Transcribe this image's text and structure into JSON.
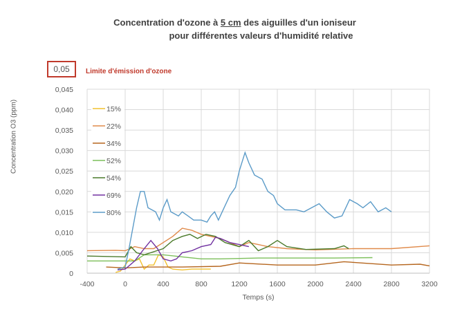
{
  "chart_data": {
    "type": "line",
    "title_line1_pre": "Concentration d'ozone à ",
    "title_line1_u": "5 cm",
    "title_line1_post": " des aiguilles d'un ioniseur",
    "title_line2": "pour différentes valeurs d'humidité relative",
    "xlabel": "Temps (s)",
    "ylabel": "Concentration O3 (ppm)",
    "xlim": [
      -400,
      3200
    ],
    "ylim": [
      0,
      0.045
    ],
    "xticks": [
      "-400",
      "0",
      "400",
      "800",
      "1200",
      "1600",
      "2000",
      "2400",
      "2800",
      "3200"
    ],
    "yticks": [
      "0",
      "0,005",
      "0,010",
      "0,015",
      "0,020",
      "0,025",
      "0,030",
      "0,035",
      "0,040",
      "0,045"
    ],
    "grid": true,
    "legend_placement": "top-left inside",
    "annotation": {
      "value": "0,05",
      "label": "Limite d'émission d'ozone",
      "color": "#c0392b"
    },
    "series": [
      {
        "name": "15%",
        "color": "#f2c12e",
        "points": [
          [
            -100,
            0.0002
          ],
          [
            -50,
            0.0005
          ],
          [
            0,
            0.002
          ],
          [
            50,
            0.0035
          ],
          [
            100,
            0.003
          ],
          [
            150,
            0.0035
          ],
          [
            200,
            0.001
          ],
          [
            250,
            0.002
          ],
          [
            300,
            0.002
          ],
          [
            350,
            0.0045
          ],
          [
            400,
            0.004
          ],
          [
            450,
            0.0015
          ],
          [
            500,
            0.001
          ],
          [
            600,
            0.0008
          ],
          [
            700,
            0.001
          ],
          [
            900,
            0.001
          ]
        ]
      },
      {
        "name": "22%",
        "color": "#e08a4a",
        "points": [
          [
            -400,
            0.0055
          ],
          [
            -100,
            0.0056
          ],
          [
            0,
            0.0055
          ],
          [
            100,
            0.0065
          ],
          [
            200,
            0.006
          ],
          [
            300,
            0.006
          ],
          [
            400,
            0.0075
          ],
          [
            500,
            0.009
          ],
          [
            600,
            0.011
          ],
          [
            700,
            0.0105
          ],
          [
            800,
            0.0095
          ],
          [
            900,
            0.009
          ],
          [
            1000,
            0.0085
          ],
          [
            1100,
            0.0075
          ],
          [
            1200,
            0.0065
          ],
          [
            1300,
            0.0075
          ],
          [
            1400,
            0.007
          ],
          [
            1500,
            0.0065
          ],
          [
            1700,
            0.006
          ],
          [
            2000,
            0.0057
          ],
          [
            2400,
            0.006
          ],
          [
            2800,
            0.006
          ],
          [
            3200,
            0.0067
          ]
        ]
      },
      {
        "name": "34%",
        "color": "#b5651d",
        "points": [
          [
            -200,
            0.0015
          ],
          [
            0,
            0.0013
          ],
          [
            200,
            0.0015
          ],
          [
            600,
            0.0015
          ],
          [
            1000,
            0.0017
          ],
          [
            1200,
            0.0025
          ],
          [
            1600,
            0.002
          ],
          [
            2000,
            0.002
          ],
          [
            2300,
            0.0028
          ],
          [
            2800,
            0.002
          ],
          [
            3100,
            0.0022
          ],
          [
            3200,
            0.0018
          ]
        ]
      },
      {
        "name": "52%",
        "color": "#7cbf5a",
        "points": [
          [
            -400,
            0.003
          ],
          [
            -100,
            0.003
          ],
          [
            0,
            0.003
          ],
          [
            100,
            0.003
          ],
          [
            200,
            0.0045
          ],
          [
            400,
            0.0045
          ],
          [
            600,
            0.004
          ],
          [
            800,
            0.0035
          ],
          [
            1000,
            0.0035
          ],
          [
            1400,
            0.0037
          ],
          [
            1800,
            0.0037
          ],
          [
            2200,
            0.0037
          ],
          [
            2600,
            0.0038
          ]
        ]
      },
      {
        "name": "54%",
        "color": "#4a7a2a",
        "points": [
          [
            -400,
            0.0042
          ],
          [
            0,
            0.004
          ],
          [
            60,
            0.0065
          ],
          [
            120,
            0.005
          ],
          [
            200,
            0.0045
          ],
          [
            400,
            0.006
          ],
          [
            500,
            0.008
          ],
          [
            600,
            0.009
          ],
          [
            680,
            0.0095
          ],
          [
            760,
            0.0085
          ],
          [
            850,
            0.0095
          ],
          [
            950,
            0.009
          ],
          [
            1050,
            0.0075
          ],
          [
            1200,
            0.0065
          ],
          [
            1300,
            0.008
          ],
          [
            1400,
            0.0055
          ],
          [
            1500,
            0.0065
          ],
          [
            1600,
            0.008
          ],
          [
            1700,
            0.0065
          ],
          [
            1900,
            0.0058
          ],
          [
            2200,
            0.006
          ],
          [
            2300,
            0.0067
          ],
          [
            2350,
            0.006
          ]
        ]
      },
      {
        "name": "69%",
        "color": "#7030a0",
        "points": [
          [
            -80,
            0.0008
          ],
          [
            0,
            0.001
          ],
          [
            100,
            0.003
          ],
          [
            200,
            0.006
          ],
          [
            270,
            0.008
          ],
          [
            340,
            0.006
          ],
          [
            400,
            0.0035
          ],
          [
            480,
            0.003
          ],
          [
            540,
            0.0035
          ],
          [
            600,
            0.005
          ],
          [
            700,
            0.0055
          ],
          [
            800,
            0.0065
          ],
          [
            900,
            0.007
          ],
          [
            950,
            0.0088
          ],
          [
            1000,
            0.0085
          ],
          [
            1100,
            0.0075
          ],
          [
            1200,
            0.007
          ],
          [
            1300,
            0.0065
          ]
        ]
      },
      {
        "name": "80%",
        "color": "#5b9bc8",
        "points": [
          [
            -80,
            0.001
          ],
          [
            0,
            0.0015
          ],
          [
            40,
            0.006
          ],
          [
            80,
            0.011
          ],
          [
            120,
            0.016
          ],
          [
            160,
            0.02
          ],
          [
            200,
            0.02
          ],
          [
            240,
            0.016
          ],
          [
            320,
            0.015
          ],
          [
            360,
            0.013
          ],
          [
            400,
            0.016
          ],
          [
            440,
            0.018
          ],
          [
            480,
            0.015
          ],
          [
            560,
            0.014
          ],
          [
            600,
            0.015
          ],
          [
            660,
            0.014
          ],
          [
            720,
            0.013
          ],
          [
            800,
            0.013
          ],
          [
            860,
            0.0125
          ],
          [
            900,
            0.014
          ],
          [
            940,
            0.015
          ],
          [
            980,
            0.013
          ],
          [
            1040,
            0.016
          ],
          [
            1100,
            0.019
          ],
          [
            1160,
            0.021
          ],
          [
            1200,
            0.025
          ],
          [
            1260,
            0.0295
          ],
          [
            1300,
            0.027
          ],
          [
            1360,
            0.024
          ],
          [
            1440,
            0.023
          ],
          [
            1500,
            0.02
          ],
          [
            1560,
            0.019
          ],
          [
            1600,
            0.017
          ],
          [
            1680,
            0.0155
          ],
          [
            1800,
            0.0155
          ],
          [
            1880,
            0.015
          ],
          [
            1960,
            0.016
          ],
          [
            2040,
            0.017
          ],
          [
            2120,
            0.015
          ],
          [
            2200,
            0.0135
          ],
          [
            2280,
            0.014
          ],
          [
            2360,
            0.018
          ],
          [
            2440,
            0.017
          ],
          [
            2500,
            0.016
          ],
          [
            2580,
            0.0175
          ],
          [
            2660,
            0.015
          ],
          [
            2740,
            0.016
          ],
          [
            2800,
            0.015
          ]
        ]
      }
    ]
  }
}
